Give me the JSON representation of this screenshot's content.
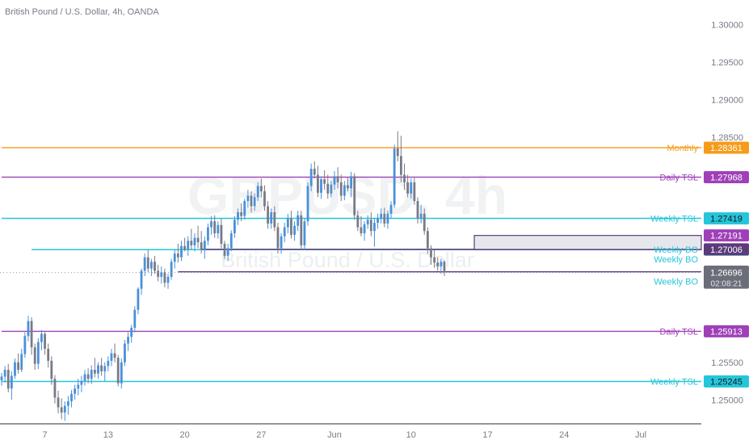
{
  "header": {
    "symbol_title": "British Pound / U.S. Dollar, 4h, OANDA"
  },
  "watermark": {
    "ticker": "GBPUSD, 4h",
    "description": "British Pound / U.S. Dollar"
  },
  "colors": {
    "up": "#4a90d9",
    "down": "#787b86",
    "monthly": "#f59c1a",
    "daily_tsl": "#a040b8",
    "weekly_tsl": "#26c6da",
    "weekly_bo": "#5c3b7a",
    "axis_text": "#787b86",
    "current_price_bg": "#6b6e78"
  },
  "chart_data": {
    "type": "candlestick",
    "y_range": [
      1.2468,
      1.3033
    ],
    "y_ticks": [
      "1.30000",
      "1.29500",
      "1.29000",
      "1.28500",
      "1.25500",
      "1.25000"
    ],
    "x_ticks": [
      {
        "label": "7",
        "index": 13
      },
      {
        "label": "13",
        "index": 32
      },
      {
        "label": "20",
        "index": 55
      },
      {
        "label": "27",
        "index": 78
      },
      {
        "label": "Jun",
        "index": 100
      },
      {
        "label": "10",
        "index": 123
      },
      {
        "label": "17",
        "index": 146
      },
      {
        "label": "24",
        "index": 169
      },
      {
        "label": "Jul",
        "index": 192
      }
    ],
    "levels": [
      {
        "label": "Monthly",
        "price": "1.28361",
        "value": 1.28361,
        "style": "monthly",
        "start_index": 0
      },
      {
        "label": "Daily TSL",
        "price": "1.27968",
        "value": 1.27968,
        "style": "daily_tsl",
        "start_index": 0
      },
      {
        "label": "Weekly TSL",
        "price": "1.27419",
        "value": 1.27419,
        "style": "weekly_tsl",
        "start_index": 0
      },
      {
        "label": "Weekly TSL",
        "price": "1.25245",
        "value": 1.25245,
        "style": "weekly_tsl",
        "start_index": 0
      },
      {
        "label": "Daily TSL",
        "price": "1.25913",
        "value": 1.25913,
        "style": "daily_tsl",
        "start_index": 0
      },
      {
        "label": "Weekly BO",
        "price": "1.27002",
        "value": 1.27002,
        "style": "weekly_tsl",
        "start_index": 9
      },
      {
        "label": "Weekly BO",
        "price": "1.26707",
        "value": 1.26707,
        "style": "weekly_bo",
        "start_index": 53
      },
      {
        "label": "Weekly BO",
        "price": "1.27006",
        "value": 1.27006,
        "style": "weekly_bo",
        "start_index": 60
      }
    ],
    "extra_price_labels": [
      {
        "price": "1.27191",
        "value": 1.27191,
        "style": "daily_tsl"
      }
    ],
    "box": {
      "top": 1.27191,
      "bottom": 1.27002,
      "start_index": 142
    },
    "current_price": {
      "price": "1.26696",
      "value": 1.26696,
      "countdown": "02:08:21"
    },
    "candles": [
      [
        1.2526,
        1.2536,
        1.2519,
        1.2531
      ],
      [
        1.2531,
        1.2545,
        1.2523,
        1.254
      ],
      [
        1.254,
        1.2548,
        1.251,
        1.2515
      ],
      [
        1.2515,
        1.2538,
        1.25,
        1.2532
      ],
      [
        1.2532,
        1.2555,
        1.2528,
        1.255
      ],
      [
        1.255,
        1.2562,
        1.2535,
        1.254
      ],
      [
        1.254,
        1.2568,
        1.2537,
        1.2561
      ],
      [
        1.2561,
        1.259,
        1.2556,
        1.2585
      ],
      [
        1.2585,
        1.2612,
        1.2578,
        1.2605
      ],
      [
        1.2605,
        1.261,
        1.256,
        1.257
      ],
      [
        1.257,
        1.2575,
        1.254,
        1.2548
      ],
      [
        1.2548,
        1.2582,
        1.2541,
        1.2577
      ],
      [
        1.2577,
        1.2593,
        1.2566,
        1.2588
      ],
      [
        1.2588,
        1.259,
        1.256,
        1.2568
      ],
      [
        1.2568,
        1.2575,
        1.2543,
        1.2552
      ],
      [
        1.2552,
        1.2558,
        1.252,
        1.2528
      ],
      [
        1.2528,
        1.2533,
        1.2495,
        1.2503
      ],
      [
        1.2503,
        1.2512,
        1.2482,
        1.249
      ],
      [
        1.249,
        1.2502,
        1.2474,
        1.2483
      ],
      [
        1.2483,
        1.2498,
        1.2472,
        1.2492
      ],
      [
        1.2492,
        1.2505,
        1.248,
        1.2498
      ],
      [
        1.2498,
        1.2513,
        1.249,
        1.2508
      ],
      [
        1.2508,
        1.252,
        1.25,
        1.2515
      ],
      [
        1.2515,
        1.2528,
        1.2506,
        1.252
      ],
      [
        1.252,
        1.2532,
        1.251,
        1.2525
      ],
      [
        1.2525,
        1.254,
        1.2519,
        1.2534
      ],
      [
        1.2534,
        1.2542,
        1.2522,
        1.2528
      ],
      [
        1.2528,
        1.2546,
        1.2521,
        1.254
      ],
      [
        1.254,
        1.2556,
        1.253,
        1.2535
      ],
      [
        1.2535,
        1.255,
        1.2528,
        1.2546
      ],
      [
        1.2546,
        1.2556,
        1.2532,
        1.2538
      ],
      [
        1.2538,
        1.255,
        1.2525,
        1.2545
      ],
      [
        1.2545,
        1.2558,
        1.2538,
        1.2552
      ],
      [
        1.2552,
        1.2568,
        1.2545,
        1.2562
      ],
      [
        1.2562,
        1.2575,
        1.255,
        1.2556
      ],
      [
        1.2556,
        1.256,
        1.2518,
        1.2522
      ],
      [
        1.2522,
        1.2555,
        1.2515,
        1.255
      ],
      [
        1.255,
        1.258,
        1.2545,
        1.2575
      ],
      [
        1.2575,
        1.259,
        1.2565,
        1.2584
      ],
      [
        1.2584,
        1.26,
        1.2576,
        1.2596
      ],
      [
        1.2596,
        1.2625,
        1.259,
        1.262
      ],
      [
        1.262,
        1.265,
        1.2614,
        1.2648
      ],
      [
        1.2648,
        1.2675,
        1.264,
        1.2672
      ],
      [
        1.2672,
        1.2695,
        1.2665,
        1.269
      ],
      [
        1.269,
        1.27,
        1.267,
        1.2675
      ],
      [
        1.2675,
        1.2688,
        1.2665,
        1.2684
      ],
      [
        1.2684,
        1.2692,
        1.2668,
        1.2672
      ],
      [
        1.2672,
        1.268,
        1.2658,
        1.2664
      ],
      [
        1.2664,
        1.2678,
        1.2655,
        1.267
      ],
      [
        1.267,
        1.2675,
        1.265,
        1.2656
      ],
      [
        1.2656,
        1.2668,
        1.2648,
        1.2664
      ],
      [
        1.2664,
        1.2688,
        1.266,
        1.2684
      ],
      [
        1.2684,
        1.27,
        1.2675,
        1.2695
      ],
      [
        1.2695,
        1.2708,
        1.2683,
        1.269
      ],
      [
        1.269,
        1.2712,
        1.2685,
        1.2705
      ],
      [
        1.2705,
        1.2716,
        1.2698,
        1.27
      ],
      [
        1.27,
        1.2718,
        1.2692,
        1.2712
      ],
      [
        1.2712,
        1.2728,
        1.27,
        1.2706
      ],
      [
        1.2706,
        1.2722,
        1.2698,
        1.2716
      ],
      [
        1.2716,
        1.2732,
        1.2702,
        1.271
      ],
      [
        1.271,
        1.2725,
        1.2695,
        1.27
      ],
      [
        1.27,
        1.2718,
        1.2688,
        1.2712
      ],
      [
        1.2712,
        1.2735,
        1.2706,
        1.273
      ],
      [
        1.273,
        1.2745,
        1.272,
        1.2738
      ],
      [
        1.2738,
        1.2746,
        1.2716,
        1.2722
      ],
      [
        1.2722,
        1.2738,
        1.2715,
        1.2733
      ],
      [
        1.2733,
        1.2742,
        1.2702,
        1.2708
      ],
      [
        1.2708,
        1.2712,
        1.2688,
        1.2692
      ],
      [
        1.2692,
        1.2708,
        1.2685,
        1.2702
      ],
      [
        1.2702,
        1.2726,
        1.2698,
        1.2722
      ],
      [
        1.2722,
        1.2745,
        1.2716,
        1.274
      ],
      [
        1.274,
        1.2755,
        1.2733,
        1.275
      ],
      [
        1.275,
        1.2762,
        1.2738,
        1.2745
      ],
      [
        1.2745,
        1.2768,
        1.274,
        1.2765
      ],
      [
        1.2765,
        1.278,
        1.2756,
        1.2772
      ],
      [
        1.2772,
        1.2778,
        1.275,
        1.2758
      ],
      [
        1.2758,
        1.2775,
        1.2752,
        1.277
      ],
      [
        1.277,
        1.279,
        1.2765,
        1.2785
      ],
      [
        1.2785,
        1.2795,
        1.277,
        1.2778
      ],
      [
        1.2778,
        1.2786,
        1.2752,
        1.2758
      ],
      [
        1.2758,
        1.2765,
        1.2728,
        1.2735
      ],
      [
        1.2735,
        1.2755,
        1.2728,
        1.275
      ],
      [
        1.275,
        1.2758,
        1.2725,
        1.273
      ],
      [
        1.273,
        1.2736,
        1.2695,
        1.2702
      ],
      [
        1.2702,
        1.2722,
        1.2695,
        1.2718
      ],
      [
        1.2718,
        1.2736,
        1.271,
        1.273
      ],
      [
        1.273,
        1.2748,
        1.2722,
        1.2742
      ],
      [
        1.2742,
        1.2752,
        1.2715,
        1.272
      ],
      [
        1.272,
        1.2738,
        1.2712,
        1.2732
      ],
      [
        1.2732,
        1.2752,
        1.2725,
        1.2746
      ],
      [
        1.2746,
        1.2752,
        1.27,
        1.2706
      ],
      [
        1.2706,
        1.2742,
        1.27,
        1.2738
      ],
      [
        1.2738,
        1.279,
        1.2732,
        1.2785
      ],
      [
        1.2785,
        1.2815,
        1.2778,
        1.2808
      ],
      [
        1.2808,
        1.2818,
        1.2795,
        1.28
      ],
      [
        1.28,
        1.2812,
        1.277,
        1.2776
      ],
      [
        1.2776,
        1.2798,
        1.2768,
        1.2794
      ],
      [
        1.2794,
        1.2806,
        1.278,
        1.2788
      ],
      [
        1.2788,
        1.28,
        1.2768,
        1.2775
      ],
      [
        1.2775,
        1.2792,
        1.277,
        1.2787
      ],
      [
        1.2787,
        1.2805,
        1.278,
        1.2798
      ],
      [
        1.2798,
        1.281,
        1.2782,
        1.279
      ],
      [
        1.279,
        1.28,
        1.2765,
        1.2772
      ],
      [
        1.2772,
        1.2792,
        1.2766,
        1.2786
      ],
      [
        1.2786,
        1.2796,
        1.2778,
        1.2782
      ],
      [
        1.2782,
        1.2804,
        1.277,
        1.2798
      ],
      [
        1.2798,
        1.2802,
        1.274,
        1.2746
      ],
      [
        1.2746,
        1.2752,
        1.2725,
        1.273
      ],
      [
        1.273,
        1.2745,
        1.2718,
        1.2722
      ],
      [
        1.2722,
        1.2738,
        1.2712,
        1.2734
      ],
      [
        1.2734,
        1.2746,
        1.2728,
        1.274
      ],
      [
        1.274,
        1.275,
        1.2718,
        1.2725
      ],
      [
        1.2725,
        1.2742,
        1.2704,
        1.2736
      ],
      [
        1.2736,
        1.2748,
        1.2728,
        1.2742
      ],
      [
        1.2742,
        1.2755,
        1.2735,
        1.2748
      ],
      [
        1.2748,
        1.2756,
        1.273,
        1.2735
      ],
      [
        1.2735,
        1.2752,
        1.2728,
        1.2748
      ],
      [
        1.2748,
        1.2765,
        1.2742,
        1.276
      ],
      [
        1.276,
        1.284,
        1.2756,
        1.2835
      ],
      [
        1.2835,
        1.2858,
        1.2818,
        1.2825
      ],
      [
        1.2825,
        1.2852,
        1.279,
        1.28
      ],
      [
        1.28,
        1.2815,
        1.278,
        1.279
      ],
      [
        1.279,
        1.28,
        1.277,
        1.2775
      ],
      [
        1.2775,
        1.2795,
        1.2768,
        1.279
      ],
      [
        1.279,
        1.2796,
        1.276,
        1.2765
      ],
      [
        1.2765,
        1.277,
        1.2735,
        1.2742
      ],
      [
        1.2742,
        1.276,
        1.2735,
        1.2748
      ],
      [
        1.2748,
        1.2755,
        1.272,
        1.2725
      ],
      [
        1.2725,
        1.273,
        1.2695,
        1.2702
      ],
      [
        1.2702,
        1.2706,
        1.268,
        1.269
      ],
      [
        1.269,
        1.27,
        1.2676,
        1.2683
      ],
      [
        1.2683,
        1.269,
        1.2672,
        1.2678
      ],
      [
        1.2678,
        1.2688,
        1.2668,
        1.2684
      ],
      [
        1.2684,
        1.2686,
        1.2665,
        1.267
      ]
    ]
  }
}
